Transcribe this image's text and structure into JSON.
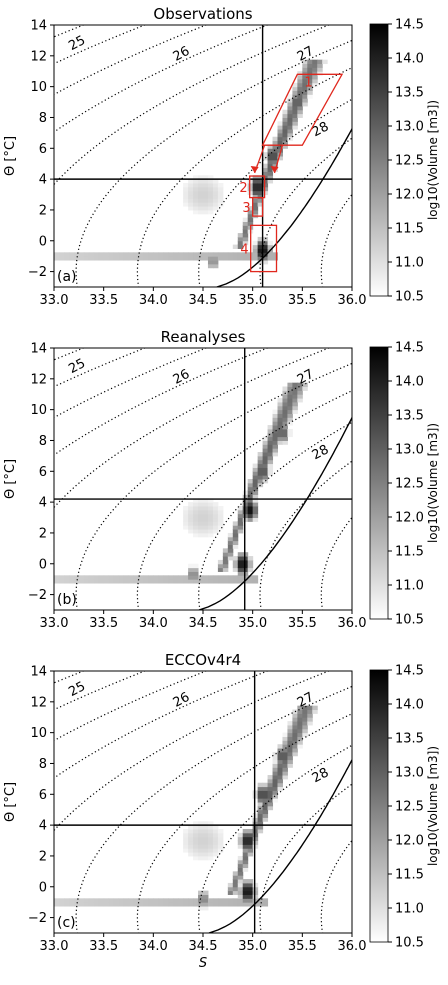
{
  "chart_data": [
    {
      "type": "heatmap",
      "title": "Observations",
      "panel_label": "(a)",
      "xlabel": "",
      "ylabel": "Θ [°C]",
      "xlim": [
        33.0,
        36.0
      ],
      "ylim": [
        -3,
        14
      ],
      "x_ticks": [
        "33.0",
        "33.5",
        "34.0",
        "34.5",
        "35.0",
        "35.5",
        "36.0"
      ],
      "y_ticks": [
        "-2",
        "0",
        "2",
        "4",
        "6",
        "8",
        "10",
        "12",
        "14"
      ],
      "colorbar": {
        "label": "log10(Volume [m3])",
        "range": [
          10.5,
          14.5
        ],
        "ticks": [
          "10.5",
          "11.0",
          "11.5",
          "12.0",
          "12.5",
          "13.0",
          "13.5",
          "14.0",
          "14.5"
        ]
      },
      "density_contour_labels": [
        "25",
        "26",
        "27",
        "28"
      ],
      "reference_lines": {
        "salinity": 35.1,
        "theta": 4.0
      },
      "boxes": [
        {
          "label": "1",
          "S": [
            35.1,
            35.9
          ],
          "theta": [
            6.2,
            10.8
          ]
        },
        {
          "label": "2",
          "S": [
            34.97,
            35.12
          ],
          "theta": [
            2.8,
            4.2
          ]
        },
        {
          "label": "3",
          "S": [
            35.0,
            35.1
          ],
          "theta": [
            1.6,
            2.8
          ]
        },
        {
          "label": "4",
          "S": [
            34.98,
            35.24
          ],
          "theta": [
            -2.0,
            1.0
          ]
        }
      ],
      "density_cores": [
        {
          "S": 35.45,
          "theta": 9.0,
          "value": 13.3
        },
        {
          "S": 35.2,
          "theta": 5.5,
          "value": 13.6
        },
        {
          "S": 35.05,
          "theta": 3.5,
          "value": 14.2
        },
        {
          "S": 35.1,
          "theta": -0.6,
          "value": 14.4
        },
        {
          "S": 34.6,
          "theta": -1.3,
          "value": 12.4
        }
      ]
    },
    {
      "type": "heatmap",
      "title": "Reanalyses",
      "panel_label": "(b)",
      "xlabel": "",
      "ylabel": "Θ [°C]",
      "xlim": [
        33.0,
        36.0
      ],
      "ylim": [
        -3,
        14
      ],
      "x_ticks": [
        "33.0",
        "33.5",
        "34.0",
        "34.5",
        "35.0",
        "35.5",
        "36.0"
      ],
      "y_ticks": [
        "-2",
        "0",
        "2",
        "4",
        "6",
        "8",
        "10",
        "12",
        "14"
      ],
      "colorbar": {
        "label": "log10(Volume [m3])",
        "range": [
          10.5,
          14.5
        ],
        "ticks": [
          "10.5",
          "11.0",
          "11.5",
          "12.0",
          "12.5",
          "13.0",
          "13.5",
          "14.0",
          "14.5"
        ]
      },
      "density_contour_labels": [
        "25",
        "26",
        "27",
        "28"
      ],
      "reference_lines": {
        "salinity": 34.92,
        "theta": 4.2
      },
      "density_cores": [
        {
          "S": 35.3,
          "theta": 8.5,
          "value": 13.2
        },
        {
          "S": 35.1,
          "theta": 6.0,
          "value": 13.4
        },
        {
          "S": 34.97,
          "theta": 3.5,
          "value": 14.3
        },
        {
          "S": 34.9,
          "theta": 0.0,
          "value": 14.4
        },
        {
          "S": 34.4,
          "theta": -0.7,
          "value": 12.5
        }
      ]
    },
    {
      "type": "heatmap",
      "title": "ECCOv4r4",
      "panel_label": "(c)",
      "xlabel": "S",
      "ylabel": "Θ [°C]",
      "xlim": [
        33.0,
        36.0
      ],
      "ylim": [
        -3,
        14
      ],
      "x_ticks": [
        "33.0",
        "33.5",
        "34.0",
        "34.5",
        "35.0",
        "35.5",
        "36.0"
      ],
      "y_ticks": [
        "-2",
        "0",
        "2",
        "4",
        "6",
        "8",
        "10",
        "12",
        "14"
      ],
      "colorbar": {
        "label": "log10(Volume [m3])",
        "range": [
          10.5,
          14.5
        ],
        "ticks": [
          "10.5",
          "11.0",
          "11.5",
          "12.0",
          "12.5",
          "13.0",
          "13.5",
          "14.0",
          "14.5"
        ]
      },
      "density_contour_labels": [
        "25",
        "26",
        "27",
        "28"
      ],
      "reference_lines": {
        "salinity": 35.02,
        "theta": 4.0
      },
      "density_cores": [
        {
          "S": 35.3,
          "theta": 8.5,
          "value": 13.4
        },
        {
          "S": 35.1,
          "theta": 6.0,
          "value": 13.6
        },
        {
          "S": 34.95,
          "theta": 3.0,
          "value": 14.2
        },
        {
          "S": 34.95,
          "theta": -0.3,
          "value": 14.4
        },
        {
          "S": 34.5,
          "theta": -0.8,
          "value": 12.6
        }
      ]
    }
  ]
}
